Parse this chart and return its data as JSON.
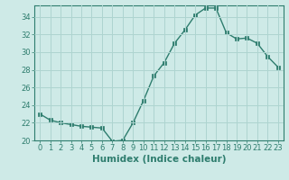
{
  "x": [
    0,
    1,
    2,
    3,
    4,
    5,
    6,
    7,
    8,
    9,
    10,
    11,
    12,
    13,
    14,
    15,
    16,
    17,
    18,
    19,
    20,
    21,
    22,
    23
  ],
  "y": [
    23,
    22.3,
    22,
    21.8,
    21.6,
    21.5,
    21.4,
    19.9,
    20.0,
    22.0,
    24.5,
    27.3,
    28.8,
    31.0,
    32.5,
    34.2,
    35.0,
    35.0,
    32.2,
    31.5,
    31.6,
    31.0,
    29.5,
    28.3
  ],
  "xlabel": "Humidex (Indice chaleur)",
  "ylim": [
    20,
    35
  ],
  "xlim": [
    -0.5,
    23.5
  ],
  "yticks": [
    20,
    22,
    24,
    26,
    28,
    30,
    32,
    34
  ],
  "xticks": [
    0,
    1,
    2,
    3,
    4,
    5,
    6,
    7,
    8,
    9,
    10,
    11,
    12,
    13,
    14,
    15,
    16,
    17,
    18,
    19,
    20,
    21,
    22,
    23
  ],
  "line_color": "#2e7d6e",
  "marker_color": "#2e7d6e",
  "bg_color": "#ceeae7",
  "grid_color": "#aed4d0",
  "tick_label_fontsize": 6,
  "xlabel_fontsize": 7.5
}
